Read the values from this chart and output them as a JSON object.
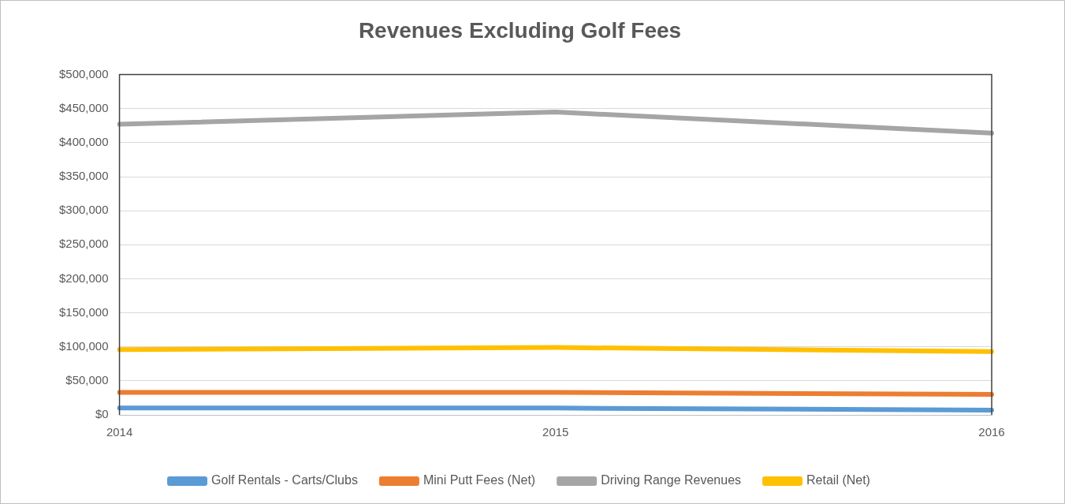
{
  "chart_data": {
    "type": "line",
    "title": "Revenues Excluding Golf Fees",
    "categories": [
      "2014",
      "2015",
      "2016"
    ],
    "series": [
      {
        "name": "Golf Rentals - Carts/Clubs",
        "color": "#5b9bd5",
        "values": [
          10000,
          10000,
          7000
        ]
      },
      {
        "name": "Mini Putt Fees (Net)",
        "color": "#ed7d31",
        "values": [
          33000,
          33000,
          30000
        ]
      },
      {
        "name": "Driving Range Revenues",
        "color": "#a5a5a5",
        "values": [
          427000,
          445000,
          414000
        ]
      },
      {
        "name": "Retail (Net)",
        "color": "#ffc000",
        "values": [
          96000,
          99000,
          93000
        ]
      }
    ],
    "ylim": [
      0,
      500000
    ],
    "yticks": [
      {
        "value": 0,
        "label": "$0"
      },
      {
        "value": 50000,
        "label": "$50,000"
      },
      {
        "value": 100000,
        "label": "$100,000"
      },
      {
        "value": 150000,
        "label": "$150,000"
      },
      {
        "value": 200000,
        "label": "$200,000"
      },
      {
        "value": 250000,
        "label": "$250,000"
      },
      {
        "value": 300000,
        "label": "$300,000"
      },
      {
        "value": 350000,
        "label": "$350,000"
      },
      {
        "value": 400000,
        "label": "$400,000"
      },
      {
        "value": 450000,
        "label": "$450,000"
      },
      {
        "value": 500000,
        "label": "$500,000"
      }
    ],
    "grid": "y",
    "legend": "bottom",
    "marker": "none",
    "line_style": "solid"
  }
}
